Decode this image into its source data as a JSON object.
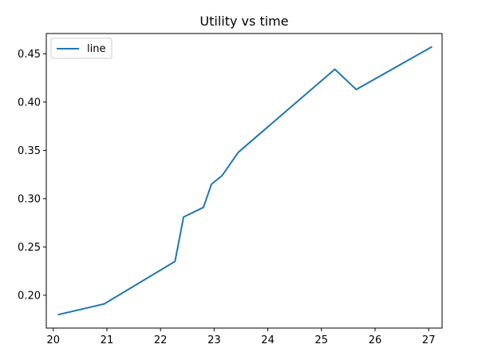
{
  "chart_data": {
    "type": "line",
    "title": "Utility vs time",
    "xlabel": "",
    "ylabel": "",
    "xlim": [
      19.87,
      27.25
    ],
    "ylim": [
      0.166,
      0.471
    ],
    "x_ticks": [
      "20",
      "21",
      "22",
      "23",
      "24",
      "25",
      "26",
      "27"
    ],
    "y_ticks": [
      "0.20",
      "0.25",
      "0.30",
      "0.35",
      "0.40",
      "0.45"
    ],
    "grid": false,
    "legend_position": "upper left",
    "series": [
      {
        "name": "line",
        "color": "#1f77b4",
        "x": [
          20.1,
          20.95,
          22.27,
          22.43,
          22.8,
          22.95,
          23.15,
          23.45,
          25.25,
          25.65,
          27.05
        ],
        "y": [
          0.18,
          0.191,
          0.235,
          0.281,
          0.291,
          0.315,
          0.324,
          0.348,
          0.434,
          0.413,
          0.457
        ]
      }
    ]
  }
}
